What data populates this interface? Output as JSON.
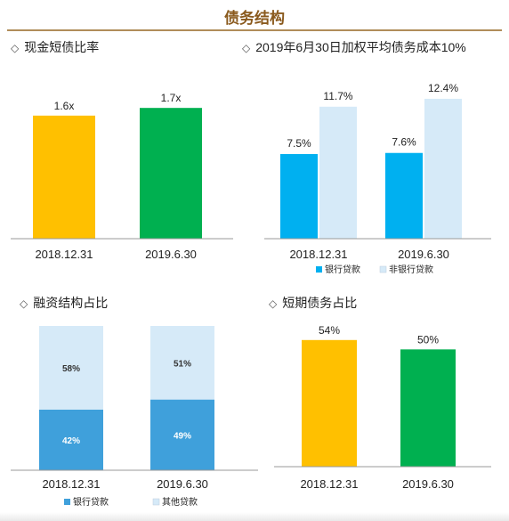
{
  "page_title": "债务结构",
  "colors": {
    "yellow": "#FFC000",
    "green": "#00B050",
    "bank_blue": "#00B0F0",
    "nonbank_lightblue": "#D6EAF8",
    "steel_blue": "#3FA0DB",
    "other_lightblue": "#D6EAF8"
  },
  "chart_data": [
    {
      "id": "cash-ratio",
      "type": "bar",
      "title": "现金短债比率",
      "categories": [
        "2018.12.31",
        "2019.6.30"
      ],
      "values": [
        1.6,
        1.7
      ],
      "data_labels": [
        "1.6x",
        "1.7x"
      ],
      "colors": [
        "#FFC000",
        "#00B050"
      ],
      "ylim": [
        0,
        2.2
      ]
    },
    {
      "id": "funding-cost",
      "type": "bar",
      "title": "2019年6月30日加权平均债务成本10%",
      "categories": [
        "2018.12.31",
        "2019.6.30"
      ],
      "series": [
        {
          "name": "银行贷款",
          "values": [
            7.5,
            7.6
          ],
          "data_labels": [
            "7.5%",
            "7.6%"
          ],
          "color": "#00B0F0"
        },
        {
          "name": "非银行贷款",
          "values": [
            11.7,
            12.4
          ],
          "data_labels": [
            "11.7%",
            "12.4%"
          ],
          "color": "#D6EAF8"
        }
      ],
      "ylim": [
        0,
        15
      ],
      "legend": "bottom"
    },
    {
      "id": "financing-structure",
      "type": "bar",
      "stacked": true,
      "title": "融资结构占比",
      "categories": [
        "2018.12.31",
        "2019.6.30"
      ],
      "series": [
        {
          "name": "银行贷款",
          "values": [
            42,
            49
          ],
          "data_labels": [
            "42%",
            "49%"
          ],
          "color": "#3FA0DB"
        },
        {
          "name": "其他贷款",
          "values": [
            58,
            51
          ],
          "data_labels": [
            "58%",
            "51%"
          ],
          "color": "#D6EAF8"
        }
      ],
      "ylim": [
        0,
        100
      ],
      "legend": "bottom"
    },
    {
      "id": "short-term-debt",
      "type": "bar",
      "title": "短期债务占比",
      "categories": [
        "2018.12.31",
        "2019.6.30"
      ],
      "values": [
        54,
        50
      ],
      "data_labels": [
        "54%",
        "50%"
      ],
      "colors": [
        "#FFC000",
        "#00B050"
      ],
      "ylim": [
        0,
        60
      ]
    }
  ]
}
